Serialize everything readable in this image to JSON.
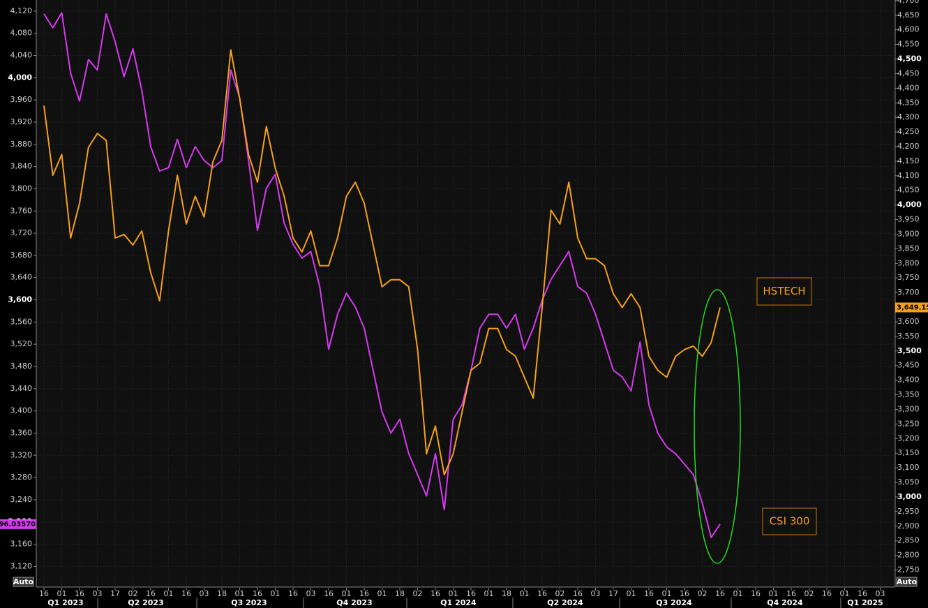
{
  "chart_data": {
    "type": "line",
    "categories": [
      "16",
      null,
      "01",
      null,
      "16",
      null,
      "03",
      null,
      "17",
      null,
      "02",
      null,
      "16",
      null,
      "01",
      null,
      "16",
      null,
      "03",
      null,
      "18",
      null,
      "01",
      null,
      "16",
      null,
      "01",
      null,
      "16",
      null,
      "03",
      null,
      "16",
      null,
      "01",
      null,
      "16",
      null,
      "01",
      null,
      "18",
      null,
      "02",
      null,
      "16",
      null,
      "01",
      null,
      "16",
      null,
      "01",
      null,
      "18",
      null,
      "01",
      null,
      "16",
      null,
      "02",
      null,
      "16",
      null,
      "03",
      null,
      "17",
      null,
      "01",
      null,
      "16",
      null,
      "01",
      null,
      "16",
      null,
      "02",
      null,
      "16",
      null,
      "01",
      null,
      "16",
      null,
      "01",
      null,
      "16",
      null,
      "02",
      null,
      "16",
      null,
      "01",
      null,
      "16",
      null,
      "03"
    ],
    "quarters": [
      "Q1 2023",
      "Q2 2023",
      "Q3 2023",
      "Q4 2023",
      "Q1 2024",
      "Q2 2024",
      "Q3 2024",
      "Q4 2024",
      "Q1 2025"
    ],
    "axis_mode_labels": [
      "Auto",
      "Auto"
    ],
    "series": [
      {
        "name": "CSI 300",
        "color": "#d63af0",
        "axis": "y",
        "last_label": "3196.03570",
        "values": [
          4115,
          4090,
          4117,
          4008,
          3958,
          4033,
          4014,
          4115,
          4065,
          4002,
          4052,
          3977,
          3876,
          3832,
          3838,
          3889,
          3838,
          3876,
          3851,
          3838,
          3851,
          4014,
          3964,
          3851,
          3725,
          3801,
          3826,
          3738,
          3700,
          3675,
          3687,
          3624,
          3511,
          3574,
          3612,
          3587,
          3549,
          3473,
          3398,
          3360,
          3385,
          3323,
          3285,
          3247,
          3323,
          3222,
          3385,
          3411,
          3473,
          3549,
          3574,
          3574,
          3549,
          3574,
          3511,
          3549,
          3599,
          3637,
          3662,
          3687,
          3624,
          3612,
          3574,
          3524,
          3473,
          3461,
          3436,
          3524,
          3411,
          3360,
          3335,
          3323,
          3304,
          3285,
          3234,
          3172,
          3196.0357,
          null,
          null,
          null,
          null,
          null,
          null,
          null,
          null,
          null,
          null,
          null,
          null,
          null,
          null,
          null,
          null,
          null,
          null
        ]
      },
      {
        "name": "HSTECH",
        "color": "#f5a01a",
        "axis": "y2",
        "last_label": "3,649.15",
        "values": [
          4340,
          4102,
          4173,
          3887,
          4006,
          4197,
          4245,
          4221,
          3887,
          3899,
          3863,
          3911,
          3768,
          3672,
          3911,
          4102,
          3935,
          4030,
          3959,
          4149,
          4221,
          4531,
          4364,
          4173,
          4078,
          4269,
          4126,
          4030,
          3887,
          3839,
          3911,
          3792,
          3792,
          3887,
          4030,
          4078,
          4006,
          3863,
          3720,
          3744,
          3744,
          3720,
          3505,
          3148,
          3243,
          3076,
          3148,
          3291,
          3434,
          3458,
          3577,
          3577,
          3505,
          3482,
          3410,
          3339,
          3649,
          3982,
          3935,
          4078,
          3887,
          3816,
          3816,
          3792,
          3696,
          3649,
          3696,
          3649,
          3482,
          3434,
          3410,
          3482,
          3505,
          3517,
          3482,
          3529,
          3649.15,
          null,
          null,
          null,
          null,
          null,
          null,
          null,
          null,
          null,
          null,
          null,
          null,
          null,
          null,
          null,
          null,
          null,
          null
        ]
      }
    ],
    "ylim": [
      3084,
      4140
    ],
    "yticks": [
      {
        "value": 4120,
        "label": "4,120"
      },
      {
        "value": 4080,
        "label": "4,080"
      },
      {
        "value": 4040,
        "label": "4,040"
      },
      {
        "value": 4000,
        "label": "4,000"
      },
      {
        "value": 3960,
        "label": "3,960"
      },
      {
        "value": 3920,
        "label": "3,920"
      },
      {
        "value": 3880,
        "label": "3,880"
      },
      {
        "value": 3840,
        "label": "3,840"
      },
      {
        "value": 3800,
        "label": "3,800"
      },
      {
        "value": 3760,
        "label": "3,760"
      },
      {
        "value": 3720,
        "label": "3,720"
      },
      {
        "value": 3680,
        "label": "3,680"
      },
      {
        "value": 3640,
        "label": "3,640"
      },
      {
        "value": 3600,
        "label": "3,600"
      },
      {
        "value": 3560,
        "label": "3,560"
      },
      {
        "value": 3520,
        "label": "3,520"
      },
      {
        "value": 3480,
        "label": "3,480"
      },
      {
        "value": 3440,
        "label": "3,440"
      },
      {
        "value": 3400,
        "label": "3,400"
      },
      {
        "value": 3360,
        "label": "3,360"
      },
      {
        "value": 3320,
        "label": "3,320"
      },
      {
        "value": 3280,
        "label": "3,280"
      },
      {
        "value": 3240,
        "label": "3,240"
      },
      {
        "value": 3200,
        "label": "3,200"
      },
      {
        "value": 3160,
        "label": "3,160"
      },
      {
        "value": 3120,
        "label": "3,120"
      }
    ],
    "y2lim": [
      2694,
      4702
    ],
    "y2ticks": [
      {
        "value": 4700,
        "label": "4,700"
      },
      {
        "value": 4650,
        "label": "4,650"
      },
      {
        "value": 4600,
        "label": "4,600"
      },
      {
        "value": 4550,
        "label": "4,550"
      },
      {
        "value": 4500,
        "label": "4,500"
      },
      {
        "value": 4450,
        "label": "4,450"
      },
      {
        "value": 4400,
        "label": "4,400"
      },
      {
        "value": 4350,
        "label": "4,350"
      },
      {
        "value": 4300,
        "label": "4,300"
      },
      {
        "value": 4250,
        "label": "4,250"
      },
      {
        "value": 4200,
        "label": "4,200"
      },
      {
        "value": 4150,
        "label": "4,150"
      },
      {
        "value": 4100,
        "label": "4,100"
      },
      {
        "value": 4050,
        "label": "4,050"
      },
      {
        "value": 4000,
        "label": "4,000"
      },
      {
        "value": 3950,
        "label": "3,950"
      },
      {
        "value": 3900,
        "label": "3,900"
      },
      {
        "value": 3850,
        "label": "3,850"
      },
      {
        "value": 3800,
        "label": "3,800"
      },
      {
        "value": 3750,
        "label": "3,750"
      },
      {
        "value": 3700,
        "label": "3,700"
      },
      {
        "value": 3650,
        "label": "3,650"
      },
      {
        "value": 3600,
        "label": "3,600"
      },
      {
        "value": 3550,
        "label": "3,550"
      },
      {
        "value": 3500,
        "label": "3,500"
      },
      {
        "value": 3450,
        "label": "3,450"
      },
      {
        "value": 3400,
        "label": "3,400"
      },
      {
        "value": 3350,
        "label": "3,350"
      },
      {
        "value": 3300,
        "label": "3,300"
      },
      {
        "value": 3250,
        "label": "3,250"
      },
      {
        "value": 3200,
        "label": "3,200"
      },
      {
        "value": 3150,
        "label": "3,150"
      },
      {
        "value": 3100,
        "label": "3,100"
      },
      {
        "value": 3050,
        "label": "3,050"
      },
      {
        "value": 3000,
        "label": "3,000"
      },
      {
        "value": 2950,
        "label": "2,950"
      },
      {
        "value": 2900,
        "label": "2,900"
      },
      {
        "value": 2850,
        "label": "2,850"
      },
      {
        "value": 2800,
        "label": "2,800"
      },
      {
        "value": 2750,
        "label": "2,750"
      }
    ],
    "grid": true
  }
}
